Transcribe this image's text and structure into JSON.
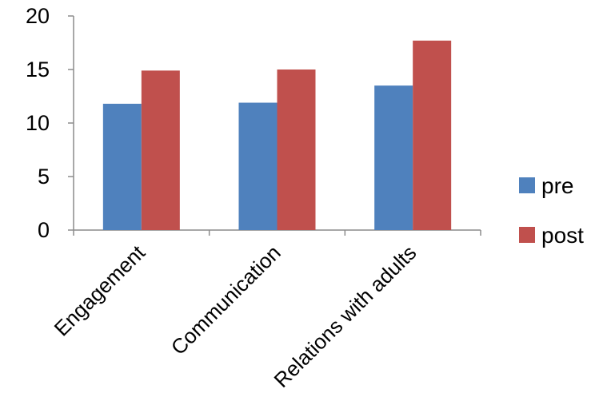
{
  "chart_data": {
    "type": "bar",
    "categories": [
      "Engagement",
      "Communication",
      "Relations with adults"
    ],
    "series": [
      {
        "name": "pre",
        "values": [
          11.8,
          11.9,
          13.5
        ],
        "color": "#4F81BD"
      },
      {
        "name": "post",
        "values": [
          14.9,
          15.0,
          17.7
        ],
        "color": "#C0504D"
      }
    ],
    "ylim": [
      0,
      20
    ],
    "yticks": [
      "0",
      "5",
      "10",
      "15",
      "20"
    ],
    "legend_position": "right",
    "grid": false
  }
}
